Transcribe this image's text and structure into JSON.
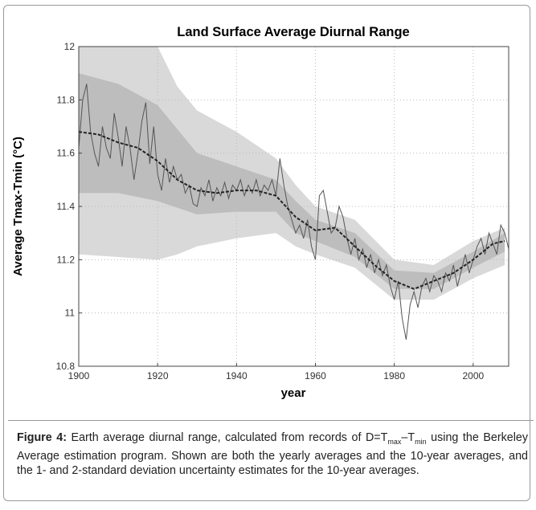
{
  "chart_data": {
    "type": "line",
    "title": "Land Surface Average Diurnal Range",
    "xlabel": "year",
    "ylabel": "Average Tmax-Tmin (°C)",
    "xlim": [
      1900,
      2009
    ],
    "xticks": [
      1900,
      1920,
      1940,
      1960,
      1980,
      2000
    ],
    "ylim": [
      10.8,
      12
    ],
    "yticks": [
      10.8,
      11,
      11.2,
      11.4,
      11.6,
      11.8,
      12
    ],
    "grid": true,
    "bands": [
      {
        "color": "#d9d9d9",
        "x": [
          1900,
          1910,
          1920,
          1925,
          1930,
          1940,
          1950,
          1955,
          1960,
          1970,
          1980,
          1990,
          2000,
          2008
        ],
        "lower": [
          11.22,
          11.21,
          11.2,
          11.22,
          11.25,
          11.28,
          11.3,
          11.25,
          11.22,
          11.17,
          11.05,
          11.05,
          11.13,
          11.18
        ],
        "upper": [
          12.1,
          12.1,
          12.0,
          11.85,
          11.76,
          11.68,
          11.58,
          11.48,
          11.4,
          11.35,
          11.2,
          11.18,
          11.27,
          11.32
        ]
      },
      {
        "color": "#bdbdbd",
        "x": [
          1900,
          1910,
          1920,
          1930,
          1940,
          1950,
          1955,
          1960,
          1970,
          1980,
          1990,
          2000,
          2008
        ],
        "lower": [
          11.45,
          11.45,
          11.42,
          11.37,
          11.38,
          11.38,
          11.3,
          11.27,
          11.21,
          11.09,
          11.09,
          11.17,
          11.23
        ],
        "upper": [
          11.9,
          11.86,
          11.78,
          11.6,
          11.55,
          11.5,
          11.42,
          11.35,
          11.3,
          11.16,
          11.15,
          11.23,
          11.3
        ]
      }
    ],
    "series": [
      {
        "style": "solid",
        "color": "#555555",
        "x": [
          1900,
          1901,
          1902,
          1903,
          1904,
          1905,
          1906,
          1907,
          1908,
          1909,
          1910,
          1911,
          1912,
          1913,
          1914,
          1915,
          1916,
          1917,
          1918,
          1919,
          1920,
          1921,
          1922,
          1923,
          1924,
          1925,
          1926,
          1927,
          1928,
          1929,
          1930,
          1931,
          1932,
          1933,
          1934,
          1935,
          1936,
          1937,
          1938,
          1939,
          1940,
          1941,
          1942,
          1943,
          1944,
          1945,
          1946,
          1947,
          1948,
          1949,
          1950,
          1951,
          1952,
          1953,
          1954,
          1955,
          1956,
          1957,
          1958,
          1959,
          1960,
          1961,
          1962,
          1963,
          1964,
          1965,
          1966,
          1967,
          1968,
          1969,
          1970,
          1971,
          1972,
          1973,
          1974,
          1975,
          1976,
          1977,
          1978,
          1979,
          1980,
          1981,
          1982,
          1983,
          1984,
          1985,
          1986,
          1987,
          1988,
          1989,
          1990,
          1991,
          1992,
          1993,
          1994,
          1995,
          1996,
          1997,
          1998,
          1999,
          2000,
          2001,
          2002,
          2003,
          2004,
          2005,
          2006,
          2007,
          2008,
          2009
        ],
        "values": [
          11.62,
          11.8,
          11.86,
          11.68,
          11.6,
          11.55,
          11.7,
          11.62,
          11.58,
          11.75,
          11.66,
          11.55,
          11.7,
          11.62,
          11.5,
          11.6,
          11.72,
          11.79,
          11.56,
          11.7,
          11.52,
          11.46,
          11.58,
          11.49,
          11.55,
          11.5,
          11.52,
          11.45,
          11.48,
          11.41,
          11.4,
          11.47,
          11.44,
          11.5,
          11.42,
          11.47,
          11.44,
          11.49,
          11.43,
          11.48,
          11.46,
          11.5,
          11.44,
          11.48,
          11.45,
          11.5,
          11.44,
          11.48,
          11.46,
          11.5,
          11.44,
          11.58,
          11.48,
          11.4,
          11.35,
          11.3,
          11.33,
          11.28,
          11.35,
          11.25,
          11.2,
          11.44,
          11.46,
          11.38,
          11.3,
          11.32,
          11.4,
          11.36,
          11.28,
          11.22,
          11.28,
          11.2,
          11.24,
          11.17,
          11.22,
          11.15,
          11.2,
          11.14,
          11.18,
          11.1,
          11.05,
          11.12,
          10.98,
          10.9,
          11.03,
          11.08,
          11.02,
          11.1,
          11.13,
          11.08,
          11.14,
          11.12,
          11.08,
          11.15,
          11.12,
          11.18,
          11.1,
          11.16,
          11.22,
          11.15,
          11.2,
          11.25,
          11.28,
          11.22,
          11.3,
          11.26,
          11.22,
          11.33,
          11.3,
          11.24
        ]
      },
      {
        "style": "dashed",
        "color": "#222222",
        "x": [
          1900,
          1905,
          1910,
          1915,
          1920,
          1925,
          1930,
          1935,
          1940,
          1945,
          1950,
          1955,
          1960,
          1965,
          1970,
          1975,
          1980,
          1985,
          1990,
          1995,
          2000,
          2005,
          2008
        ],
        "values": [
          11.68,
          11.67,
          11.64,
          11.62,
          11.57,
          11.5,
          11.46,
          11.45,
          11.46,
          11.46,
          11.44,
          11.36,
          11.31,
          11.32,
          11.25,
          11.18,
          11.12,
          11.09,
          11.12,
          11.15,
          11.2,
          11.26,
          11.27
        ]
      }
    ]
  },
  "caption": {
    "label": "Figure 4:",
    "parts": [
      " Earth average diurnal range, calculated from records of D=T",
      "max",
      "–T",
      "min",
      " using the Berkeley Average estimation program.  Shown are both the yearly averages and the 10-year averages, and the 1- and 2-standard deviation uncertainty estimates for the 10-year averages."
    ]
  }
}
